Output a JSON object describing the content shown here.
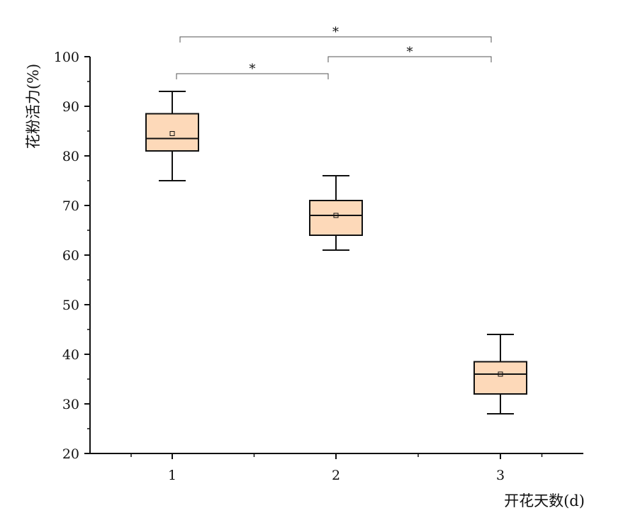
{
  "chart_data": {
    "type": "box",
    "xlabel": "开花天数(d)",
    "ylabel": "花粉活力(%)",
    "ylim": [
      20,
      100
    ],
    "yticks": [
      "20",
      "30",
      "40",
      "50",
      "60",
      "70",
      "80",
      "90",
      "100"
    ],
    "categories": [
      "1",
      "2",
      "3"
    ],
    "boxes": [
      {
        "category": "1",
        "whisker_low": 75,
        "q1": 81,
        "median": 83.5,
        "q3": 88.5,
        "whisker_high": 93,
        "mean": 84.5
      },
      {
        "category": "2",
        "whisker_low": 61,
        "q1": 64,
        "median": 68,
        "q3": 71,
        "whisker_high": 76,
        "mean": 68
      },
      {
        "category": "3",
        "whisker_low": 28,
        "q1": 32,
        "median": 36,
        "q3": 38.5,
        "whisker_high": 44,
        "mean": 36
      }
    ],
    "box_fill": "#fdd9b9",
    "significance": [
      {
        "from": "1",
        "to": "2",
        "label": "*"
      },
      {
        "from": "2",
        "to": "3",
        "label": "*"
      },
      {
        "from": "1",
        "to": "3",
        "label": "*"
      }
    ]
  }
}
